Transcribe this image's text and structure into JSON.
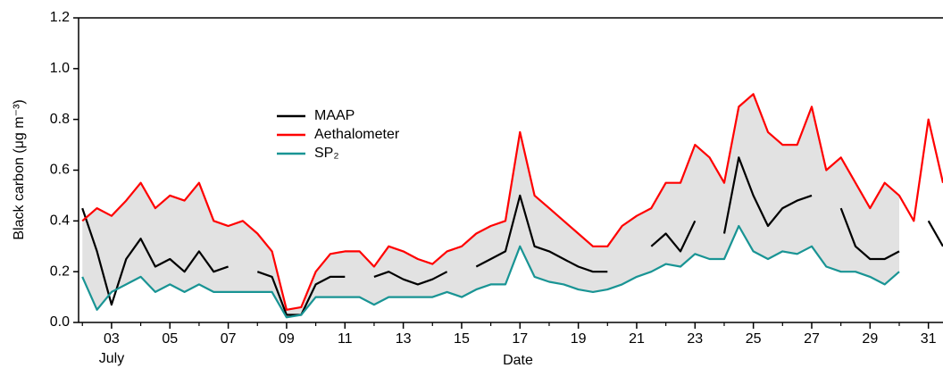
{
  "chart_data": {
    "type": "line",
    "ylabel": "Black carbon (μg m⁻³)",
    "xlabel": "Date",
    "annotations": [
      "July"
    ],
    "x": [
      2.0,
      2.5,
      3.0,
      3.5,
      4.0,
      4.5,
      5.0,
      5.5,
      6.0,
      6.5,
      7.0,
      7.5,
      8.0,
      8.5,
      9.0,
      9.5,
      10.0,
      10.5,
      11.0,
      11.5,
      12.0,
      12.5,
      13.0,
      13.5,
      14.0,
      14.5,
      15.0,
      15.5,
      16.0,
      16.5,
      17.0,
      17.5,
      18.0,
      18.5,
      19.0,
      19.5,
      20.0,
      20.5,
      21.0,
      21.5,
      22.0,
      22.5,
      23.0,
      23.5,
      24.0,
      24.5,
      25.0,
      25.5,
      26.0,
      26.5,
      27.0,
      27.5,
      28.0,
      28.5,
      29.0,
      29.5,
      30.0,
      30.5,
      31.0,
      31.5
    ],
    "series": [
      {
        "name": "MAAP",
        "color": "#000000",
        "values": [
          0.45,
          0.28,
          0.07,
          0.25,
          0.33,
          0.22,
          0.25,
          0.2,
          0.28,
          0.2,
          0.22,
          null,
          0.2,
          0.18,
          0.03,
          0.03,
          0.15,
          0.18,
          0.18,
          null,
          0.18,
          0.2,
          0.17,
          0.15,
          0.17,
          0.2,
          null,
          0.22,
          0.25,
          0.28,
          0.5,
          0.3,
          0.28,
          0.25,
          0.22,
          0.2,
          0.2,
          null,
          null,
          0.3,
          0.35,
          0.28,
          0.4,
          null,
          0.35,
          0.65,
          0.5,
          0.38,
          0.45,
          0.48,
          0.5,
          null,
          0.45,
          0.3,
          0.25,
          0.25,
          0.28,
          null,
          0.4,
          0.3
        ]
      },
      {
        "name": "Aethalometer",
        "color": "#ff0000",
        "values": [
          0.4,
          0.45,
          0.42,
          0.48,
          0.55,
          0.45,
          0.5,
          0.48,
          0.55,
          0.4,
          0.38,
          0.4,
          0.35,
          0.28,
          0.05,
          0.06,
          0.2,
          0.27,
          0.28,
          0.28,
          0.22,
          0.3,
          0.28,
          0.25,
          0.23,
          0.28,
          0.3,
          0.35,
          0.38,
          0.4,
          0.75,
          0.5,
          0.45,
          0.4,
          0.35,
          0.3,
          0.3,
          0.38,
          0.42,
          0.45,
          0.55,
          0.55,
          0.7,
          0.65,
          0.55,
          0.85,
          0.9,
          0.75,
          0.7,
          0.7,
          0.85,
          0.6,
          0.65,
          0.55,
          0.45,
          0.55,
          0.5,
          0.4,
          0.8,
          0.55
        ]
      },
      {
        "name": "SP₂",
        "color": "#199494",
        "values": [
          0.18,
          0.05,
          0.12,
          0.15,
          0.18,
          0.12,
          0.15,
          0.12,
          0.15,
          0.12,
          0.12,
          0.12,
          0.12,
          0.12,
          0.02,
          0.03,
          0.1,
          0.1,
          0.1,
          0.1,
          0.07,
          0.1,
          0.1,
          0.1,
          0.1,
          0.12,
          0.1,
          0.13,
          0.15,
          0.15,
          0.3,
          0.18,
          0.16,
          0.15,
          0.13,
          0.12,
          0.13,
          0.15,
          0.18,
          0.2,
          0.23,
          0.22,
          0.27,
          0.25,
          0.25,
          0.38,
          0.28,
          0.25,
          0.28,
          0.27,
          0.3,
          0.22,
          0.2,
          0.2,
          0.18,
          0.15,
          0.2,
          null,
          null,
          null
        ]
      }
    ],
    "band_color": "#e2e2e2",
    "xlim": [
      1.87,
      31.5
    ],
    "xticks": [
      {
        "value": 3,
        "label": "03"
      },
      {
        "value": 5,
        "label": "05"
      },
      {
        "value": 7,
        "label": "07"
      },
      {
        "value": 9,
        "label": "09"
      },
      11,
      13,
      15,
      17,
      19,
      21,
      23,
      25,
      27,
      29,
      31
    ],
    "xminor_ticks": [
      2,
      4,
      6,
      8,
      10,
      12,
      14,
      16,
      18,
      20,
      22,
      24,
      26,
      28,
      30
    ],
    "ylim": [
      0,
      1.2
    ],
    "yticks": [
      {
        "value": 0,
        "label": "0.0"
      },
      0.2,
      0.4,
      0.6,
      0.8,
      {
        "value": 1,
        "label": "1.0"
      },
      1.2
    ]
  }
}
